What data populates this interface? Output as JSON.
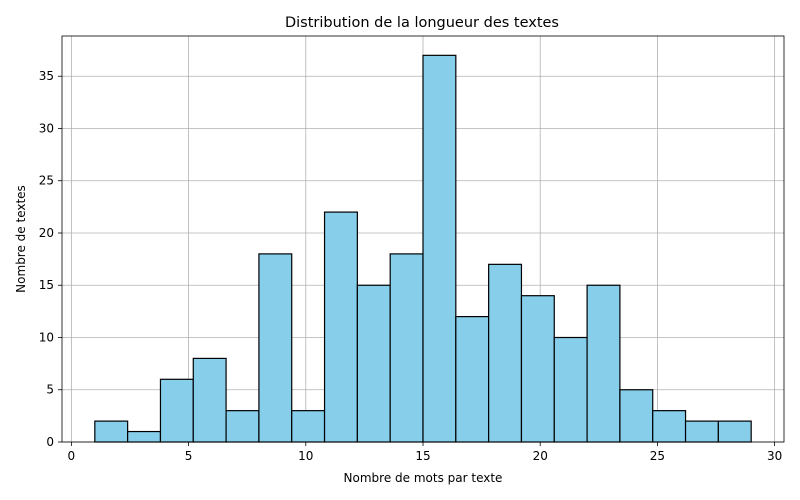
{
  "chart_data": {
    "type": "bar",
    "title": "Distribution de la longueur des textes",
    "xlabel": "Nombre de mots par texte",
    "ylabel": "Nombre de textes",
    "xlim": [
      -0.4,
      30.4
    ],
    "ylim": [
      0,
      38.85
    ],
    "xticks": [
      0,
      5,
      10,
      15,
      20,
      25,
      30
    ],
    "yticks": [
      0,
      5,
      10,
      15,
      20,
      25,
      30,
      35
    ],
    "grid": true,
    "bin_edges": [
      1.0,
      2.4,
      3.8,
      5.2,
      6.6,
      8.0,
      9.4,
      10.8,
      12.2,
      13.6,
      15.0,
      16.4,
      17.8,
      19.2,
      20.6,
      22.0,
      23.4,
      24.8,
      26.2,
      27.6,
      29.0
    ],
    "values": [
      2,
      1,
      6,
      8,
      3,
      18,
      3,
      22,
      15,
      18,
      37,
      12,
      17,
      14,
      10,
      15,
      5,
      3,
      2,
      2
    ],
    "colors": {
      "bar_fill": "#87ceeb",
      "bar_edge": "#000000",
      "grid": "#b0b0b0"
    }
  }
}
